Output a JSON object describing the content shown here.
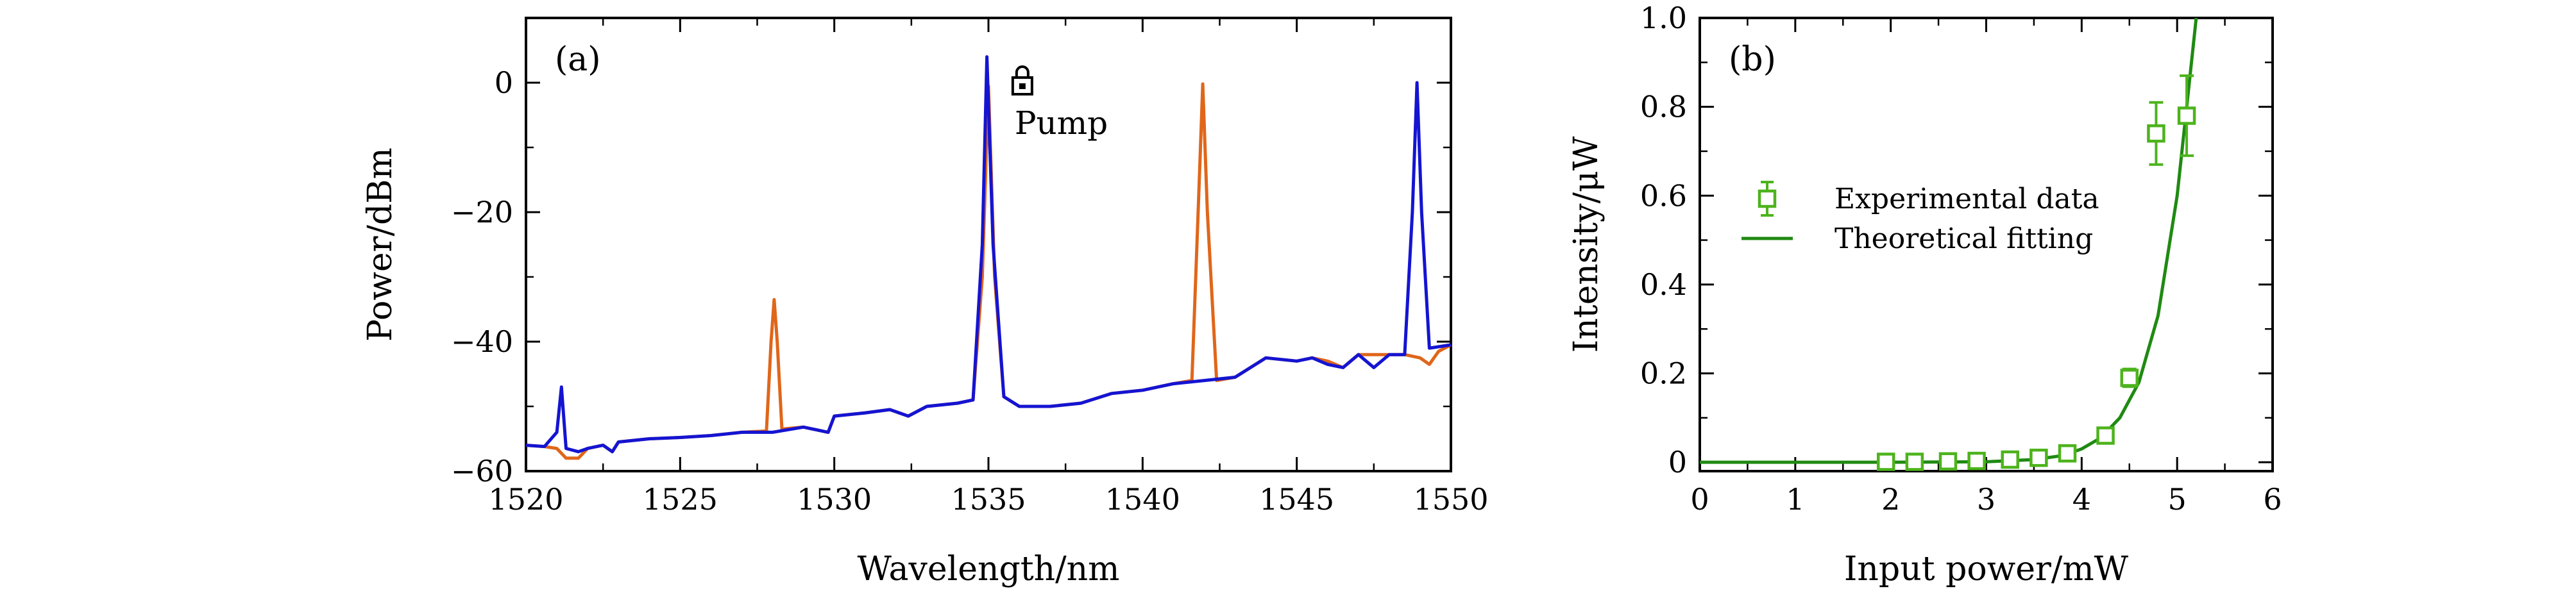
{
  "chart_data": [
    {
      "panel": "(a)",
      "type": "line",
      "xlabel": "Wavelength/nm",
      "ylabel": "Power/dBm",
      "xlim": [
        1520,
        1550
      ],
      "ylim": [
        -60,
        10
      ],
      "xticks": [
        1520,
        1525,
        1530,
        1535,
        1540,
        1545,
        1550
      ],
      "yticks": [
        -60,
        -40,
        -20,
        0
      ],
      "annotation": "Pump",
      "annotation_icon": "lock-icon",
      "series": [
        {
          "color": "#e0661a",
          "points": [
            [
              1520.0,
              -56.0
            ],
            [
              1520.6,
              -56.2
            ],
            [
              1521.0,
              -56.5
            ],
            [
              1521.3,
              -58.0
            ],
            [
              1521.7,
              -58.0
            ],
            [
              1522.0,
              -56.5
            ],
            [
              1522.5,
              -56.0
            ],
            [
              1522.8,
              -57.0
            ],
            [
              1523.0,
              -55.5
            ],
            [
              1524.0,
              -55.0
            ],
            [
              1525.0,
              -54.8
            ],
            [
              1526.0,
              -54.5
            ],
            [
              1527.0,
              -54.0
            ],
            [
              1527.8,
              -53.8
            ],
            [
              1527.95,
              -40.0
            ],
            [
              1528.05,
              -33.5
            ],
            [
              1528.15,
              -40.0
            ],
            [
              1528.3,
              -53.5
            ],
            [
              1529.0,
              -53.2
            ],
            [
              1529.8,
              -54.0
            ],
            [
              1530.0,
              -51.5
            ],
            [
              1531.0,
              -51.0
            ],
            [
              1531.8,
              -50.5
            ],
            [
              1532.4,
              -51.5
            ],
            [
              1533.0,
              -50.0
            ],
            [
              1534.0,
              -49.5
            ],
            [
              1534.5,
              -49.0
            ],
            [
              1534.8,
              -30.0
            ],
            [
              1535.0,
              -0.5
            ],
            [
              1535.2,
              -30.0
            ],
            [
              1535.5,
              -48.5
            ],
            [
              1536.0,
              -50.0
            ],
            [
              1537.0,
              -50.0
            ],
            [
              1538.0,
              -49.5
            ],
            [
              1539.0,
              -48.0
            ],
            [
              1540.0,
              -47.5
            ],
            [
              1541.0,
              -46.5
            ],
            [
              1541.6,
              -46.0
            ],
            [
              1541.8,
              -20.0
            ],
            [
              1541.95,
              -0.2
            ],
            [
              1542.1,
              -20.0
            ],
            [
              1542.4,
              -46.0
            ],
            [
              1543.0,
              -45.5
            ],
            [
              1544.0,
              -42.5
            ],
            [
              1545.0,
              -43.0
            ],
            [
              1545.5,
              -42.5
            ],
            [
              1546.0,
              -43.0
            ],
            [
              1546.5,
              -44.0
            ],
            [
              1547.0,
              -42.0
            ],
            [
              1548.0,
              -42.0
            ],
            [
              1548.5,
              -42.0
            ],
            [
              1549.0,
              -42.5
            ],
            [
              1549.3,
              -43.5
            ],
            [
              1549.6,
              -41.5
            ],
            [
              1550.0,
              -40.5
            ]
          ]
        },
        {
          "color": "#1414d2",
          "points": [
            [
              1520.0,
              -56.0
            ],
            [
              1520.6,
              -56.2
            ],
            [
              1521.0,
              -54.0
            ],
            [
              1521.15,
              -47.0
            ],
            [
              1521.3,
              -56.5
            ],
            [
              1521.7,
              -57.0
            ],
            [
              1522.0,
              -56.5
            ],
            [
              1522.5,
              -56.0
            ],
            [
              1522.8,
              -57.0
            ],
            [
              1523.0,
              -55.5
            ],
            [
              1524.0,
              -55.0
            ],
            [
              1525.0,
              -54.8
            ],
            [
              1526.0,
              -54.5
            ],
            [
              1527.0,
              -54.0
            ],
            [
              1528.0,
              -54.0
            ],
            [
              1529.0,
              -53.2
            ],
            [
              1529.8,
              -54.0
            ],
            [
              1530.0,
              -51.5
            ],
            [
              1531.0,
              -51.0
            ],
            [
              1531.8,
              -50.5
            ],
            [
              1532.4,
              -51.5
            ],
            [
              1533.0,
              -50.0
            ],
            [
              1534.0,
              -49.5
            ],
            [
              1534.5,
              -49.0
            ],
            [
              1534.8,
              -25.0
            ],
            [
              1534.95,
              4.0
            ],
            [
              1535.15,
              -25.0
            ],
            [
              1535.5,
              -48.5
            ],
            [
              1536.0,
              -50.0
            ],
            [
              1537.0,
              -50.0
            ],
            [
              1538.0,
              -49.5
            ],
            [
              1539.0,
              -48.0
            ],
            [
              1540.0,
              -47.5
            ],
            [
              1541.0,
              -46.5
            ],
            [
              1542.0,
              -46.0
            ],
            [
              1543.0,
              -45.5
            ],
            [
              1544.0,
              -42.5
            ],
            [
              1545.0,
              -43.0
            ],
            [
              1545.5,
              -42.5
            ],
            [
              1546.0,
              -43.5
            ],
            [
              1546.5,
              -44.0
            ],
            [
              1547.0,
              -42.0
            ],
            [
              1547.5,
              -44.0
            ],
            [
              1548.0,
              -42.0
            ],
            [
              1548.5,
              -42.0
            ],
            [
              1548.75,
              -20.0
            ],
            [
              1548.9,
              0.0
            ],
            [
              1549.05,
              -20.0
            ],
            [
              1549.3,
              -41.0
            ],
            [
              1550.0,
              -40.5
            ]
          ]
        }
      ]
    },
    {
      "panel": "(b)",
      "type": "scatter",
      "xlabel": "Input power/mW",
      "ylabel": "Intensity/μW",
      "xlim": [
        0,
        6
      ],
      "ylim": [
        -0.02,
        1.0
      ],
      "xticks": [
        0,
        1,
        2,
        3,
        4,
        5,
        6
      ],
      "yticks": [
        0,
        0.2,
        0.4,
        0.6,
        0.8,
        1.0
      ],
      "ytick_labels": [
        "0",
        "0.2",
        "0.4",
        "0.6",
        "0.8",
        "1.0"
      ],
      "legend_placement": "center-left",
      "series": [
        {
          "name": "Experimental data",
          "kind": "points_with_error_bars",
          "color": "#4db31c",
          "points": [
            {
              "x": 1.95,
              "y": 0.001,
              "err": 0.001
            },
            {
              "x": 2.25,
              "y": 0.001,
              "err": 0.001
            },
            {
              "x": 2.6,
              "y": 0.002,
              "err": 0.001
            },
            {
              "x": 2.9,
              "y": 0.003,
              "err": 0.001
            },
            {
              "x": 3.25,
              "y": 0.006,
              "err": 0.002
            },
            {
              "x": 3.55,
              "y": 0.01,
              "err": 0.003
            },
            {
              "x": 3.85,
              "y": 0.02,
              "err": 0.004
            },
            {
              "x": 4.25,
              "y": 0.06,
              "err": 0.006
            },
            {
              "x": 4.5,
              "y": 0.19,
              "err": 0.02
            },
            {
              "x": 4.78,
              "y": 0.74,
              "err": 0.07
            },
            {
              "x": 5.1,
              "y": 0.78,
              "err": 0.09
            }
          ]
        },
        {
          "name": "Theoretical fitting",
          "kind": "curve",
          "color": "#1f8a12",
          "points": [
            [
              0,
              0.0
            ],
            [
              1,
              0.0
            ],
            [
              2,
              0.0
            ],
            [
              3,
              0.001
            ],
            [
              3.5,
              0.006
            ],
            [
              3.8,
              0.015
            ],
            [
              4.0,
              0.03
            ],
            [
              4.2,
              0.055
            ],
            [
              4.4,
              0.1
            ],
            [
              4.6,
              0.18
            ],
            [
              4.8,
              0.33
            ],
            [
              5.0,
              0.6
            ],
            [
              5.1,
              0.8
            ],
            [
              5.2,
              1.0
            ]
          ]
        }
      ]
    }
  ]
}
